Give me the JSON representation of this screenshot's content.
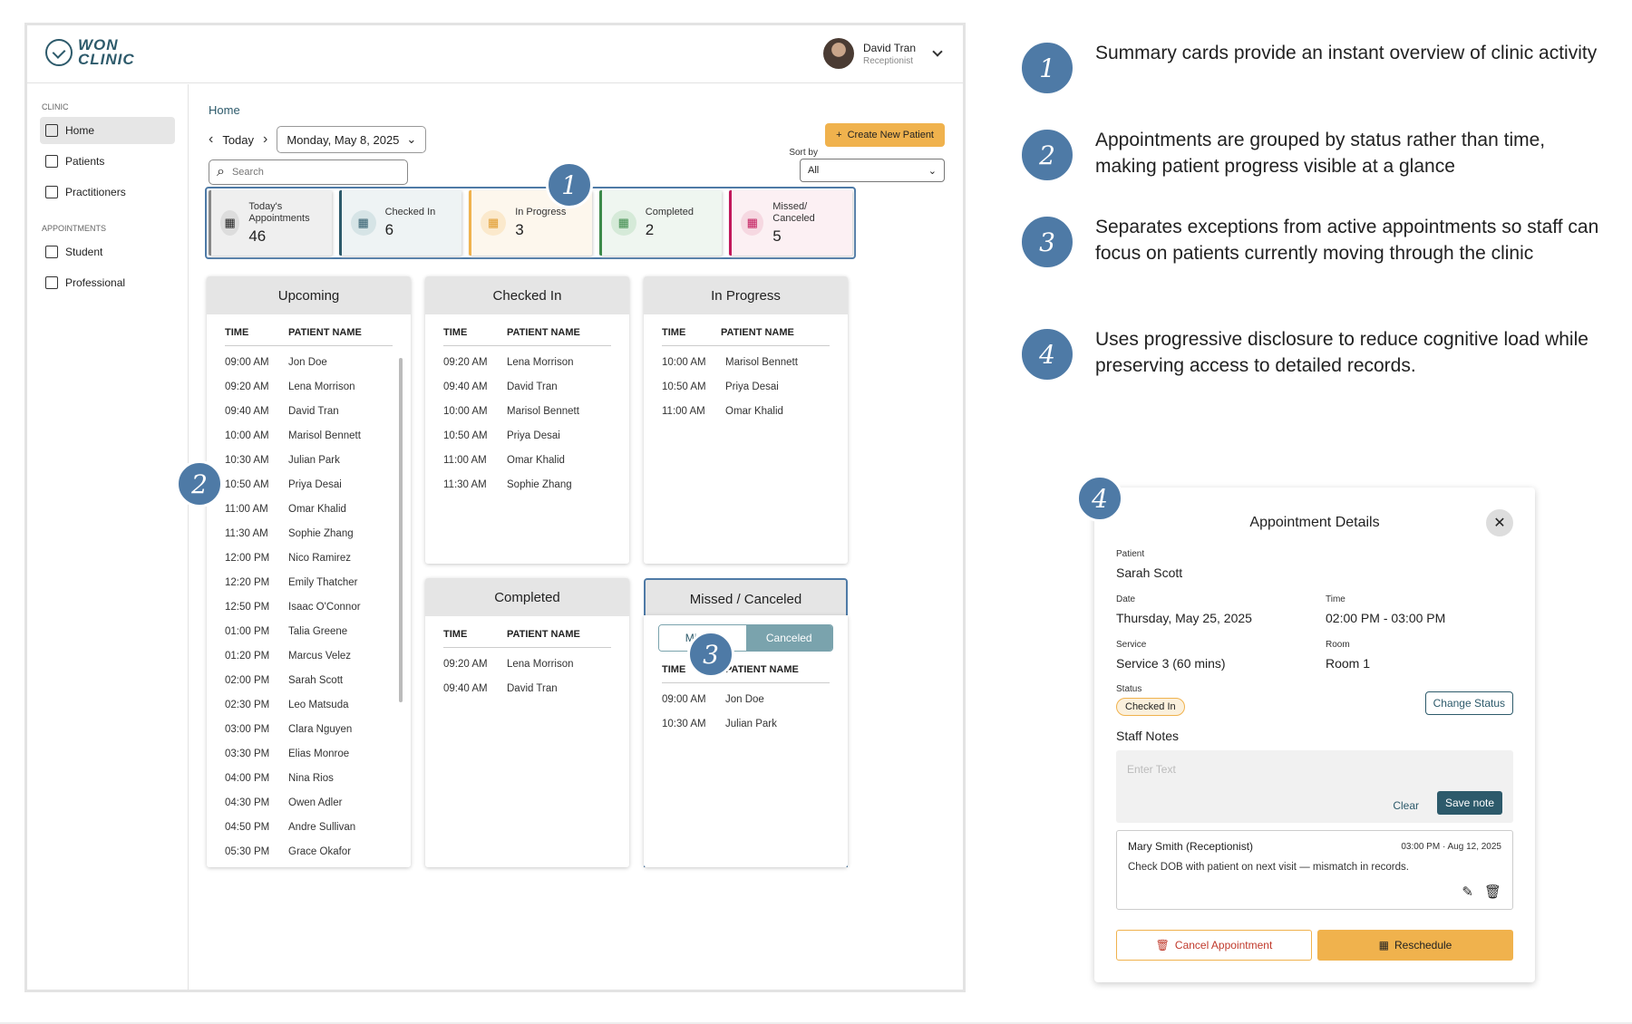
{
  "app": {
    "logo_text_1": "WON",
    "logo_text_2": "CLINIC",
    "user_name": "David Tran",
    "user_role": "Receptionist"
  },
  "sidebar": {
    "section_clinic": "CLINIC",
    "section_appointments": "APPOINTMENTS",
    "items": [
      {
        "label": "Home",
        "icon": "home-icon"
      },
      {
        "label": "Patients",
        "icon": "patient-id-icon"
      },
      {
        "label": "Practitioners",
        "icon": "briefcase-icon"
      },
      {
        "label": "Student",
        "icon": "graduation-cap-icon"
      },
      {
        "label": "Professional",
        "icon": "clipboard-icon"
      }
    ]
  },
  "header": {
    "breadcrumb": "Home",
    "today_label": "Today",
    "date_label": "Monday, May 8, 2025",
    "create_label": "Create New Patient",
    "search_placeholder": "Search",
    "sort_label": "Sort by",
    "sort_value": "All"
  },
  "summary": [
    {
      "label": "Today's Appointments",
      "value": "46",
      "color": "#888888"
    },
    {
      "label": "Checked In",
      "value": "6",
      "color": "#2d5a6b"
    },
    {
      "label": "In Progress",
      "value": "3",
      "color": "#f0b24d"
    },
    {
      "label": "Completed",
      "value": "2",
      "color": "#3c8a4a"
    },
    {
      "label": "Missed/ Canceled",
      "value": "5",
      "color": "#c2185b"
    }
  ],
  "table_headers": {
    "time": "TIME",
    "name": "PATIENT NAME"
  },
  "columns": {
    "upcoming": {
      "title": "Upcoming",
      "rows": [
        [
          "09:00 AM",
          "Jon Doe"
        ],
        [
          "09:20 AM",
          "Lena Morrison"
        ],
        [
          "09:40 AM",
          "David Tran"
        ],
        [
          "10:00 AM",
          "Marisol Bennett"
        ],
        [
          "10:30 AM",
          "Julian Park"
        ],
        [
          "10:50 AM",
          "Priya Desai"
        ],
        [
          "11:00 AM",
          "Omar Khalid"
        ],
        [
          "11:30 AM",
          "Sophie Zhang"
        ],
        [
          "12:00 PM",
          "Nico Ramirez"
        ],
        [
          "12:20 PM",
          "Emily Thatcher"
        ],
        [
          "12:50 PM",
          "Isaac O'Connor"
        ],
        [
          "01:00 PM",
          "Talia Greene"
        ],
        [
          "01:20 PM",
          "Marcus Velez"
        ],
        [
          "02:00 PM",
          "Sarah Scott"
        ],
        [
          "02:30 PM",
          "Leo Matsuda"
        ],
        [
          "03:00 PM",
          "Clara Nguyen"
        ],
        [
          "03:30 PM",
          "Elias Monroe"
        ],
        [
          "04:00 PM",
          "Nina Rios"
        ],
        [
          "04:30 PM",
          "Owen Adler"
        ],
        [
          "04:50 PM",
          "Andre Sullivan"
        ],
        [
          "05:30 PM",
          "Grace Okafor"
        ]
      ]
    },
    "checked_in": {
      "title": "Checked In",
      "rows": [
        [
          "09:20 AM",
          "Lena Morrison"
        ],
        [
          "09:40 AM",
          "David Tran"
        ],
        [
          "10:00 AM",
          "Marisol Bennett"
        ],
        [
          "10:50 AM",
          "Priya Desai"
        ],
        [
          "11:00 AM",
          "Omar Khalid"
        ],
        [
          "11:30 AM",
          "Sophie Zhang"
        ]
      ]
    },
    "in_progress": {
      "title": "In Progress",
      "rows": [
        [
          "10:00 AM",
          "Marisol Bennett"
        ],
        [
          "10:50 AM",
          "Priya Desai"
        ],
        [
          "11:00 AM",
          "Omar Khalid"
        ]
      ]
    },
    "completed": {
      "title": "Completed",
      "rows": [
        [
          "09:20 AM",
          "Lena Morrison"
        ],
        [
          "09:40 AM",
          "David Tran"
        ]
      ]
    },
    "missed": {
      "title": "Missed / Canceled",
      "tab_missed": "Missed",
      "tab_canceled": "Canceled",
      "rows": [
        [
          "09:00 AM",
          "Jon Doe"
        ],
        [
          "10:30 AM",
          "Julian Park"
        ]
      ]
    }
  },
  "badges": {
    "b1": "1",
    "b2": "2",
    "b3": "3",
    "b4": "4"
  },
  "notes": [
    {
      "num": "1",
      "text": "Summary cards provide an instant overview of clinic activity"
    },
    {
      "num": "2",
      "text": "Appointments are grouped by status rather than time, making patient progress visible at a glance"
    },
    {
      "num": "3",
      "text": "Separates exceptions from active appointments so staff can focus on patients currently moving through the clinic"
    },
    {
      "num": "4",
      "text": "Uses progressive disclosure to reduce cognitive load while preserving access to detailed records."
    }
  ],
  "modal": {
    "title": "Appointment Details",
    "patient_label": "Patient",
    "patient": "Sarah Scott",
    "date_label": "Date",
    "date": "Thursday, May 25, 2025",
    "time_label": "Time",
    "time": "02:00 PM - 03:00 PM",
    "service_label": "Service",
    "service": "Service 3 (60 mins)",
    "room_label": "Room",
    "room": "Room 1",
    "status_label": "Status",
    "status": "Checked In",
    "change_status": "Change Status",
    "staff_notes": "Staff Notes",
    "notes_placeholder": "Enter Text",
    "clear": "Clear",
    "save": "Save note",
    "entry_author": "Mary Smith (Receptionist)",
    "entry_time": "03:00 PM · Aug 12, 2025",
    "entry_text": "Check DOB with patient on next visit — mismatch in records.",
    "cancel": "Cancel Appointment",
    "reschedule": "Reschedule"
  }
}
